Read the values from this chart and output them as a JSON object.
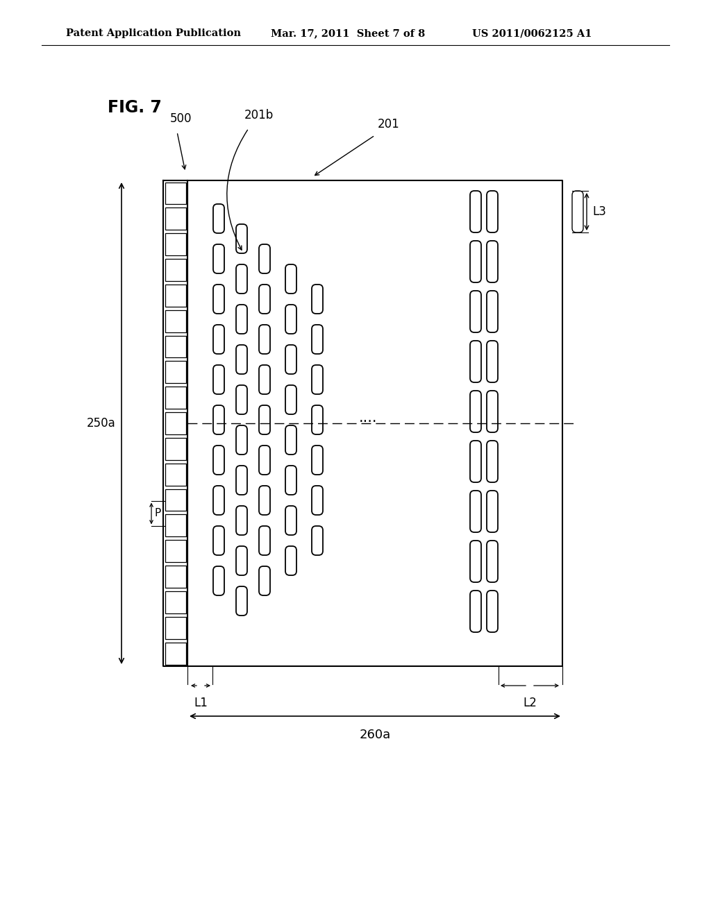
{
  "background_color": "#ffffff",
  "header_left": "Patent Application Publication",
  "header_center": "Mar. 17, 2011  Sheet 7 of 8",
  "header_right": "US 2011/0062125 A1",
  "fig_label": "FIG. 7",
  "label_500": "500",
  "label_201b": "201b",
  "label_201": "201",
  "label_250a": "250a",
  "label_P": "P",
  "label_L1": "L1",
  "label_L2": "L2",
  "label_L3": "L3",
  "label_260a": "260a",
  "label_dots": "....",
  "line_color": "#000000"
}
